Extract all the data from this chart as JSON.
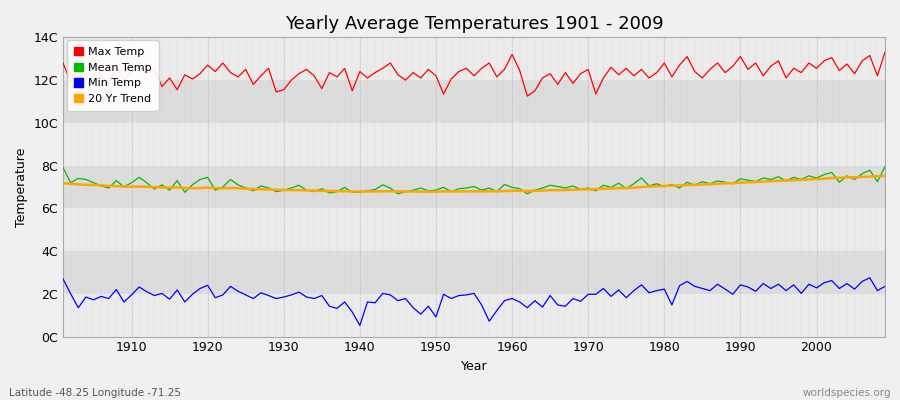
{
  "title": "Yearly Average Temperatures 1901 - 2009",
  "xlabel": "Year",
  "ylabel": "Temperature",
  "years": [
    1901,
    1902,
    1903,
    1904,
    1905,
    1906,
    1907,
    1908,
    1909,
    1910,
    1911,
    1912,
    1913,
    1914,
    1915,
    1916,
    1917,
    1918,
    1919,
    1920,
    1921,
    1922,
    1923,
    1924,
    1925,
    1926,
    1927,
    1928,
    1929,
    1930,
    1931,
    1932,
    1933,
    1934,
    1935,
    1936,
    1937,
    1938,
    1939,
    1940,
    1941,
    1942,
    1943,
    1944,
    1945,
    1946,
    1947,
    1948,
    1949,
    1950,
    1951,
    1952,
    1953,
    1954,
    1955,
    1956,
    1957,
    1958,
    1959,
    1960,
    1961,
    1962,
    1963,
    1964,
    1965,
    1966,
    1967,
    1968,
    1969,
    1970,
    1971,
    1972,
    1973,
    1974,
    1975,
    1976,
    1977,
    1978,
    1979,
    1980,
    1981,
    1982,
    1983,
    1984,
    1985,
    1986,
    1987,
    1988,
    1989,
    1990,
    1991,
    1992,
    1993,
    1994,
    1995,
    1996,
    1997,
    1998,
    1999,
    2000,
    2001,
    2002,
    2003,
    2004,
    2005,
    2006,
    2007,
    2008,
    2009
  ],
  "max_temp": [
    12.8,
    11.9,
    12.6,
    12.55,
    13.0,
    12.2,
    11.85,
    12.7,
    12.0,
    12.4,
    12.65,
    12.3,
    12.5,
    11.7,
    12.1,
    11.55,
    12.25,
    12.05,
    12.3,
    12.7,
    12.4,
    12.8,
    12.35,
    12.15,
    12.5,
    11.8,
    12.2,
    12.55,
    11.45,
    11.55,
    12.0,
    12.3,
    12.5,
    12.2,
    11.6,
    12.35,
    12.15,
    12.55,
    11.5,
    12.4,
    12.1,
    12.35,
    12.55,
    12.8,
    12.25,
    12.0,
    12.35,
    12.1,
    12.5,
    12.2,
    11.35,
    12.05,
    12.4,
    12.55,
    12.2,
    12.55,
    12.8,
    12.15,
    12.5,
    13.2,
    12.45,
    11.25,
    11.5,
    12.1,
    12.3,
    11.8,
    12.35,
    11.85,
    12.3,
    12.5,
    11.35,
    12.1,
    12.6,
    12.25,
    12.55,
    12.2,
    12.5,
    12.1,
    12.35,
    12.8,
    12.15,
    12.7,
    13.1,
    12.4,
    12.1,
    12.5,
    12.8,
    12.35,
    12.65,
    13.1,
    12.5,
    12.8,
    12.2,
    12.65,
    12.9,
    12.1,
    12.55,
    12.35,
    12.8,
    12.55,
    12.9,
    13.05,
    12.45,
    12.75,
    12.3,
    12.9,
    13.15,
    12.2,
    13.3
  ],
  "mean_temp": [
    7.9,
    7.2,
    7.4,
    7.35,
    7.2,
    7.05,
    6.95,
    7.3,
    7.0,
    7.2,
    7.45,
    7.2,
    6.9,
    7.1,
    6.85,
    7.3,
    6.75,
    7.1,
    7.35,
    7.45,
    6.85,
    7.0,
    7.35,
    7.1,
    6.95,
    6.82,
    7.05,
    6.95,
    6.78,
    6.85,
    6.95,
    7.08,
    6.85,
    6.78,
    6.92,
    6.72,
    6.78,
    6.98,
    6.75,
    6.75,
    6.82,
    6.88,
    7.1,
    6.95,
    6.68,
    6.78,
    6.85,
    6.95,
    6.82,
    6.85,
    6.98,
    6.78,
    6.92,
    6.95,
    7.02,
    6.85,
    6.95,
    6.78,
    7.12,
    6.98,
    6.92,
    6.68,
    6.85,
    6.95,
    7.08,
    7.02,
    6.95,
    7.05,
    6.88,
    6.95,
    6.82,
    7.08,
    6.98,
    7.18,
    6.92,
    7.15,
    7.42,
    7.05,
    7.15,
    7.02,
    7.12,
    6.95,
    7.22,
    7.08,
    7.25,
    7.15,
    7.28,
    7.22,
    7.15,
    7.38,
    7.32,
    7.25,
    7.42,
    7.35,
    7.48,
    7.28,
    7.45,
    7.35,
    7.52,
    7.42,
    7.58,
    7.68,
    7.22,
    7.52,
    7.35,
    7.62,
    7.78,
    7.25,
    7.95
  ],
  "min_temp": [
    2.7,
    2.0,
    1.35,
    1.85,
    1.72,
    1.88,
    1.78,
    2.2,
    1.62,
    1.95,
    2.32,
    2.1,
    1.92,
    2.02,
    1.75,
    2.18,
    1.62,
    1.98,
    2.25,
    2.4,
    1.82,
    1.95,
    2.35,
    2.12,
    1.95,
    1.78,
    2.05,
    1.92,
    1.78,
    1.85,
    1.95,
    2.08,
    1.85,
    1.78,
    1.92,
    1.42,
    1.32,
    1.62,
    1.15,
    0.52,
    1.62,
    1.58,
    2.02,
    1.95,
    1.68,
    1.78,
    1.35,
    1.05,
    1.42,
    0.92,
    1.98,
    1.78,
    1.92,
    1.95,
    2.02,
    1.48,
    0.72,
    1.22,
    1.68,
    1.78,
    1.62,
    1.35,
    1.68,
    1.38,
    1.92,
    1.48,
    1.42,
    1.78,
    1.65,
    1.98,
    1.98,
    2.25,
    1.88,
    2.18,
    1.82,
    2.15,
    2.42,
    2.05,
    2.15,
    2.22,
    1.48,
    2.38,
    2.58,
    2.35,
    2.25,
    2.15,
    2.45,
    2.22,
    1.98,
    2.42,
    2.32,
    2.12,
    2.48,
    2.25,
    2.45,
    2.15,
    2.42,
    2.02,
    2.45,
    2.28,
    2.52,
    2.62,
    2.25,
    2.48,
    2.22,
    2.58,
    2.75,
    2.15,
    2.35
  ],
  "trend_20yr": [
    7.18,
    7.15,
    7.12,
    7.1,
    7.09,
    7.08,
    7.05,
    7.04,
    7.02,
    7.01,
    7.02,
    7.01,
    6.99,
    6.98,
    6.97,
    6.98,
    6.95,
    6.94,
    6.95,
    6.97,
    6.95,
    6.94,
    6.95,
    6.94,
    6.92,
    6.9,
    6.89,
    6.88,
    6.87,
    6.86,
    6.85,
    6.85,
    6.84,
    6.83,
    6.82,
    6.81,
    6.81,
    6.8,
    6.79,
    6.78,
    6.79,
    6.79,
    6.8,
    6.8,
    6.79,
    6.79,
    6.79,
    6.78,
    6.78,
    6.78,
    6.79,
    6.79,
    6.79,
    6.79,
    6.8,
    6.79,
    6.8,
    6.8,
    6.81,
    6.82,
    6.82,
    6.81,
    6.82,
    6.83,
    6.85,
    6.85,
    6.86,
    6.87,
    6.88,
    6.89,
    6.9,
    6.92,
    6.93,
    6.95,
    6.95,
    6.97,
    7.0,
    7.02,
    7.04,
    7.04,
    7.06,
    7.07,
    7.09,
    7.1,
    7.12,
    7.13,
    7.15,
    7.17,
    7.18,
    7.2,
    7.22,
    7.23,
    7.25,
    7.27,
    7.29,
    7.3,
    7.32,
    7.33,
    7.35,
    7.37,
    7.39,
    7.42,
    7.43,
    7.45,
    7.45,
    7.47,
    7.49,
    7.5,
    7.52
  ],
  "max_color": "#ff0000",
  "mean_color": "#00bb00",
  "min_color": "#0000ff",
  "trend_color": "#ffa500",
  "bg_color": "#f0f0f0",
  "plot_bg_color_light": "#ebebeb",
  "plot_bg_color_dark": "#dcdcdc",
  "vgrid_color": "#c8c8c8",
  "hband_light": "#ebebeb",
  "hband_dark": "#dcdcdc",
  "ytick_labels": [
    "0C",
    "2C",
    "4C",
    "6C",
    "8C",
    "10C",
    "12C",
    "14C"
  ],
  "ytick_values": [
    0,
    2,
    4,
    6,
    8,
    10,
    12,
    14
  ],
  "ylim": [
    0,
    14
  ],
  "xlim": [
    1901,
    2009
  ],
  "footer_left": "Latitude -48.25 Longitude -71.25",
  "footer_right": "worldspecies.org",
  "legend_labels": [
    "Max Temp",
    "Mean Temp",
    "Min Temp",
    "20 Yr Trend"
  ],
  "legend_colors": [
    "#ff0000",
    "#00bb00",
    "#0000ff",
    "#ffa500"
  ]
}
